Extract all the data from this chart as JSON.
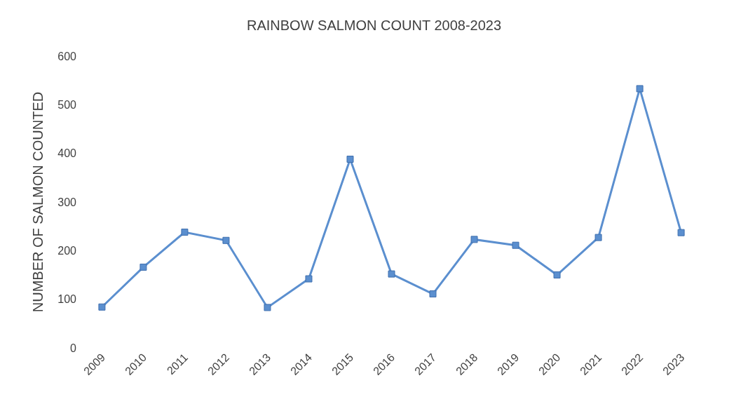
{
  "chart_data": {
    "type": "line",
    "title": "RAINBOW SALMON COUNT 2008-2023",
    "ylabel": "NUMBER OF SALMON COUNTED",
    "categories": [
      "2009",
      "2010",
      "2011",
      "2012",
      "2013",
      "2014",
      "2015",
      "2016",
      "2017",
      "2018",
      "2019",
      "2020",
      "2021",
      "2022",
      "2023"
    ],
    "series": [
      {
        "color": "#5b8fcf",
        "values": [
          84,
          166,
          238,
          221,
          83,
          142,
          388,
          152,
          111,
          223,
          211,
          150,
          227,
          533,
          237
        ]
      }
    ],
    "ylim": [
      0,
      600
    ],
    "yticks": [
      0,
      100,
      200,
      300,
      400,
      500,
      600
    ],
    "marker": "square",
    "line_style": "solid"
  }
}
